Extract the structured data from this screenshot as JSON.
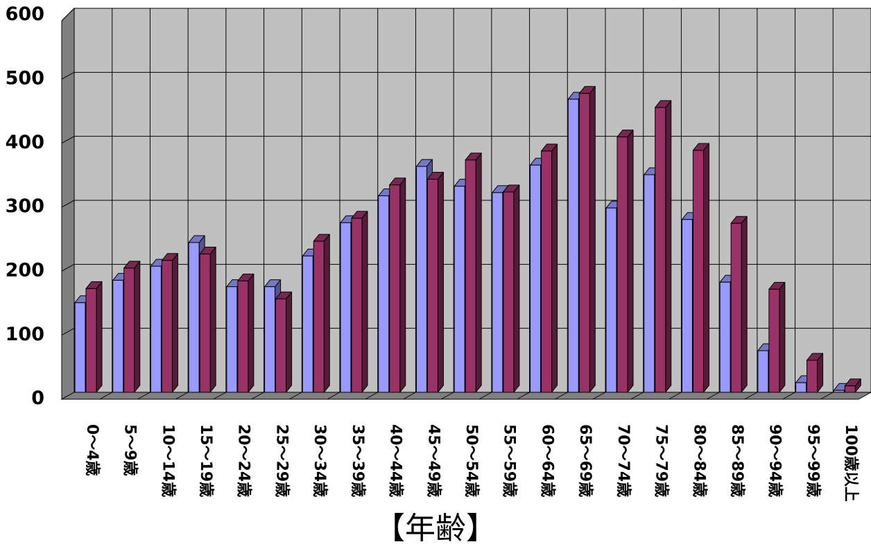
{
  "chart_data": {
    "type": "bar",
    "style": "3d-clustered-column",
    "xlabel": "【年齢】",
    "ylabel": "",
    "ylim": [
      0,
      600
    ],
    "yticks": [
      0,
      100,
      200,
      300,
      400,
      500,
      600
    ],
    "grid": true,
    "categories": [
      "0～4歳",
      "5～9歳",
      "10～14歳",
      "15～19歳",
      "20～24歳",
      "25～29歳",
      "30～34歳",
      "35～39歳",
      "40～44歳",
      "45～49歳",
      "50～54歳",
      "55～59歳",
      "60～64歳",
      "65～69歳",
      "70～74歳",
      "75～79歳",
      "80～84歳",
      "85～89歳",
      "90～94歳",
      "95～99歳",
      "100歳以上"
    ],
    "series": [
      {
        "color": "#9999ff",
        "values": [
          140,
          175,
          197,
          234,
          165,
          165,
          213,
          265,
          307,
          353,
          322,
          312,
          355,
          458,
          288,
          340,
          270,
          172,
          65,
          15,
          3
        ]
      },
      {
        "color": "#993366",
        "values": [
          162,
          194,
          206,
          216,
          174,
          146,
          236,
          272,
          324,
          333,
          363,
          313,
          377,
          467,
          399,
          445,
          378,
          264,
          161,
          50,
          10
        ]
      }
    ]
  }
}
